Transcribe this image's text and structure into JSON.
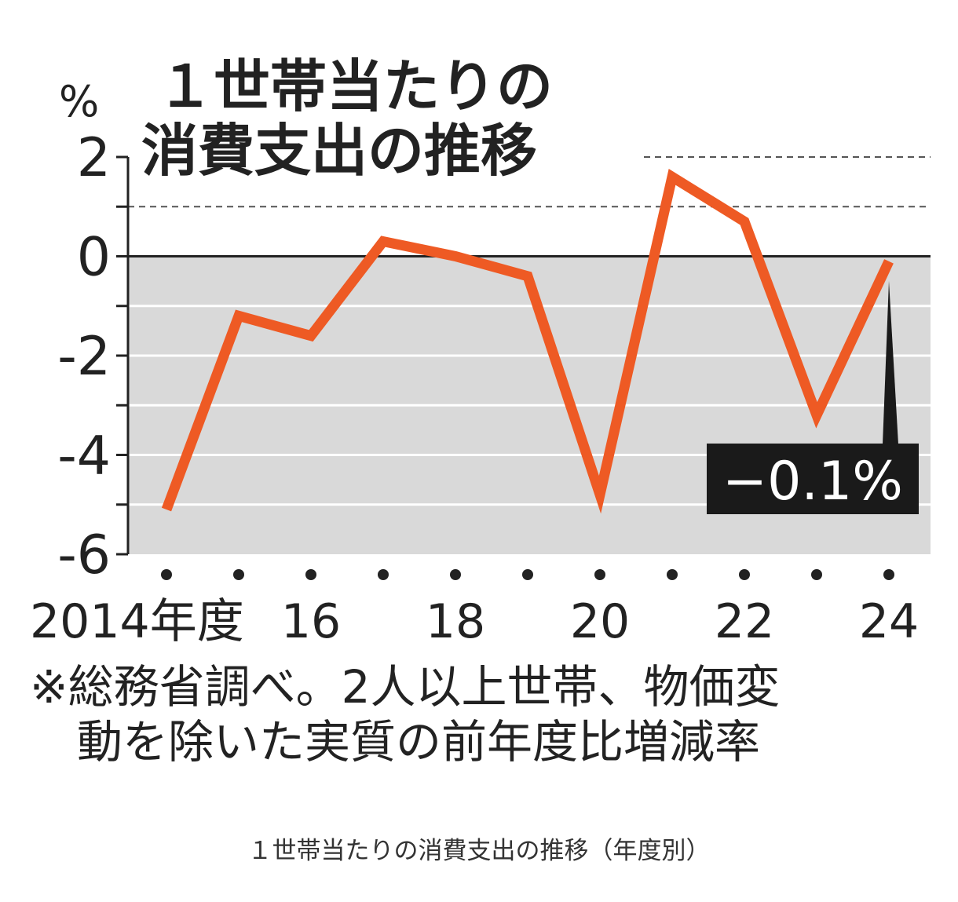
{
  "chart_data": {
    "type": "line",
    "title": "１世帯当たりの\n消費支出の推移",
    "ylabel": "%",
    "x": [
      2014,
      2015,
      2016,
      2017,
      2018,
      2019,
      2020,
      2021,
      2022,
      2023,
      2024
    ],
    "x_tick_labels": [
      "2014年度",
      "",
      "16",
      "",
      "18",
      "",
      "20",
      "",
      "22",
      "",
      "24"
    ],
    "y_ticks": [
      "2",
      "0",
      "-2",
      "-4",
      "-6"
    ],
    "ylim": [
      -6,
      2
    ],
    "series": [
      {
        "values": [
          -5.1,
          -1.2,
          -1.6,
          0.3,
          0.0,
          -0.4,
          -4.8,
          1.6,
          0.7,
          -3.2,
          -0.1
        ],
        "color": "#ee5a24"
      }
    ],
    "annotation": "−0.1%",
    "note": [
      "※総務省調べ。2人以上世帯、物価変",
      "動を除いた実質の前年度比増減率"
    ],
    "colors": {
      "line": "#ee5a24",
      "negative_area": "#d9d9d9",
      "label_box": "#1a1a1a"
    }
  },
  "caption": "１世帯当たりの消費支出の推移（年度別）"
}
